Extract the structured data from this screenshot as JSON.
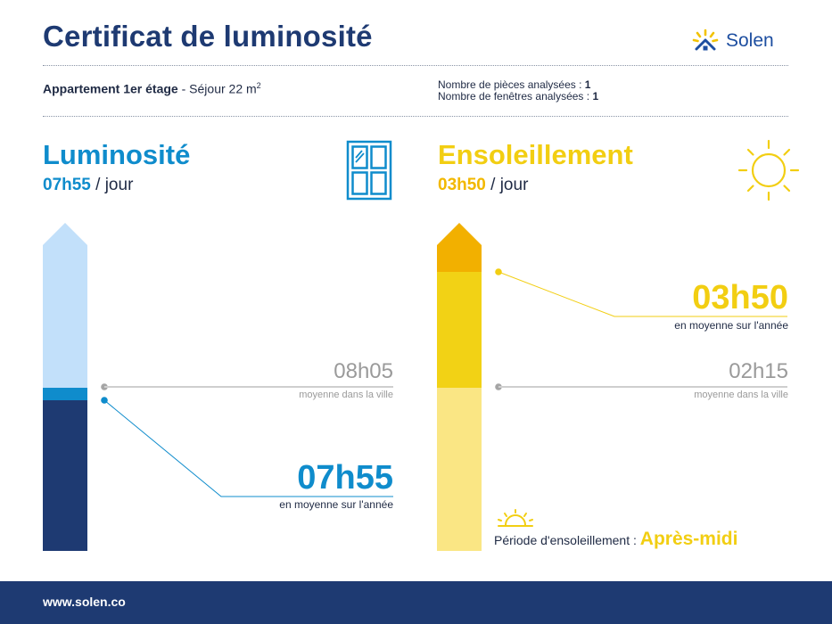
{
  "header": {
    "title": "Certificat de luminosité",
    "brand": "Solen",
    "logo_icon": "solen-sun-house-icon"
  },
  "property": {
    "name": "Appartement 1er étage",
    "room": "Séjour 22 m",
    "room_unit_sup": "2",
    "rooms_label": "Nombre de pièces analysées :",
    "rooms_value": "1",
    "windows_label": "Nombre de fenêtres analysées :",
    "windows_value": "1"
  },
  "luminosity": {
    "heading": "Luminosité",
    "daily_value": "07h55",
    "per_day": "/ jour",
    "icon": "window-icon",
    "city_average": "08h05",
    "city_average_label": "moyenne dans la ville",
    "year_average": "07h55",
    "year_average_label": "en moyenne sur l'année",
    "colors": {
      "accent": "#0f8ccc",
      "bar_light": "#c2e0fa",
      "bar_dark": "#1e3a72"
    }
  },
  "sunshine": {
    "heading": "Ensoleillement",
    "daily_value": "03h50",
    "per_day": "/ jour",
    "icon": "sun-icon",
    "city_average": "02h15",
    "city_average_label": "moyenne dans la ville",
    "year_average": "03h50",
    "year_average_label": "en moyenne sur l'année",
    "period_label": "Période d'ensoleillement :",
    "period_value": "Après-midi",
    "period_icon": "sunset-icon",
    "colors": {
      "accent": "#f2ce12",
      "bar_top": "#f2b000",
      "bar_mid": "#f2d215",
      "bar_light": "#fae684"
    }
  },
  "footer": {
    "url": "www.solen.co"
  }
}
